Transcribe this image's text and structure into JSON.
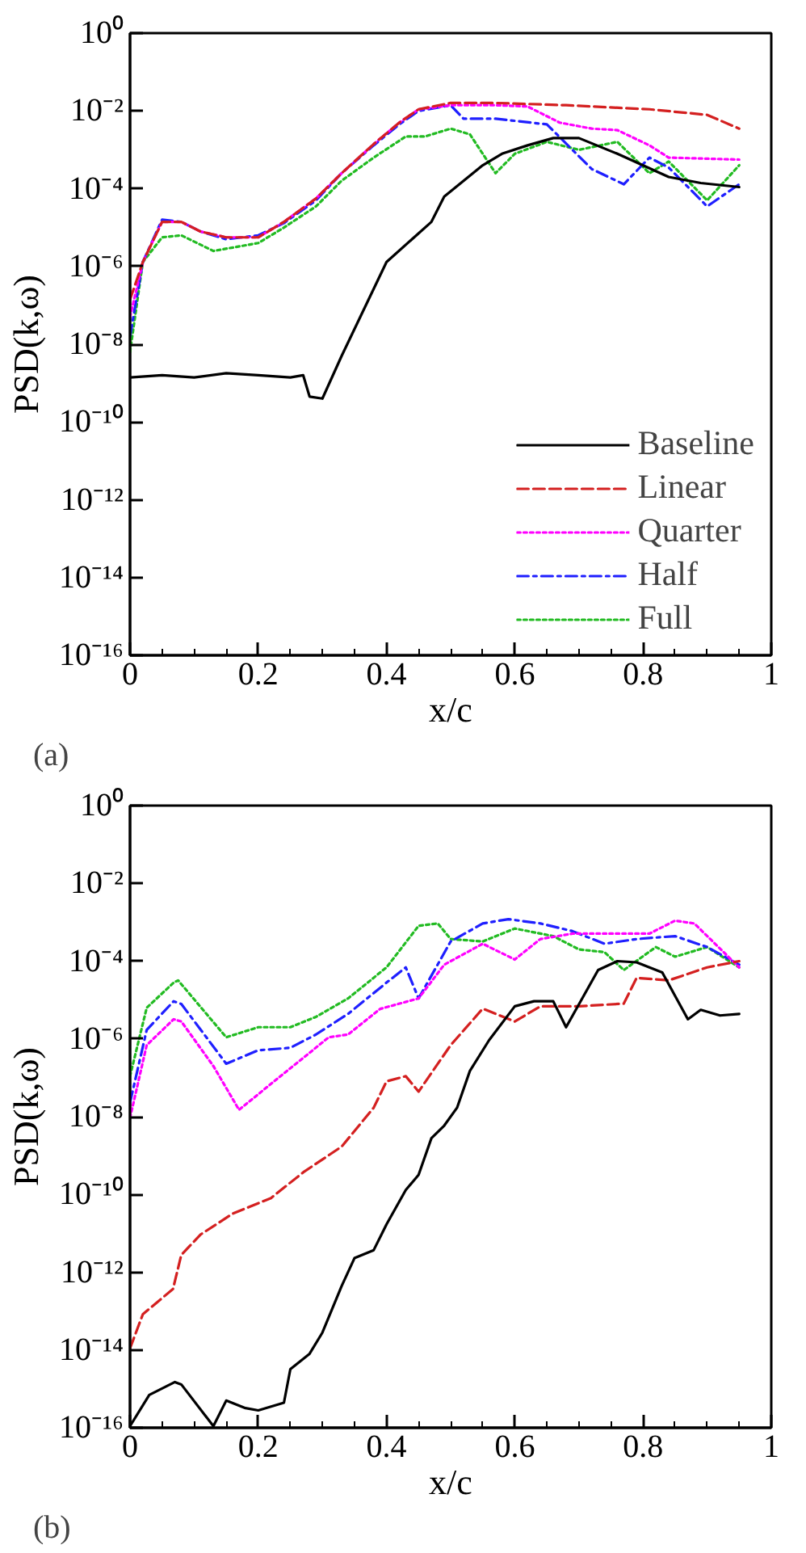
{
  "chart_data": [
    {
      "type": "line",
      "xlabel": "x/c",
      "ylabel": "PSD(k,ω)",
      "annotations": [
        "(a)"
      ],
      "log": "y",
      "grid": false,
      "legend": "bottom right",
      "xlim": [
        0,
        1
      ],
      "ylim": [
        1e-16,
        1
      ],
      "xticks": [
        0,
        0.2,
        0.4,
        0.6,
        0.8,
        1
      ],
      "yticks": [
        {
          "value": 1,
          "label": "10⁰"
        },
        {
          "value": 0.01,
          "label": "10⁻²"
        },
        {
          "value": 0.0001,
          "label": "10⁻⁴"
        },
        {
          "value": 1e-06,
          "label": "10⁻⁶"
        },
        {
          "value": 1e-08,
          "label": "10⁻⁸"
        },
        {
          "value": 1e-10,
          "label": "10⁻¹⁰"
        },
        {
          "value": 1e-12,
          "label": "10⁻¹²"
        },
        {
          "value": 1e-14,
          "label": "10⁻¹⁴"
        },
        {
          "value": 1e-16,
          "label": "10⁻¹⁶"
        }
      ],
      "series": [
        {
          "name": "Baseline",
          "color": "#000000",
          "line_style": "solid",
          "x": [
            0,
            0.05,
            0.1,
            0.15,
            0.2,
            0.25,
            0.27,
            0.28,
            0.3,
            0.33,
            0.4,
            0.47,
            0.49,
            0.55,
            0.58,
            0.62,
            0.66,
            0.7,
            0.76,
            0.84,
            0.89,
            0.95
          ],
          "values": [
            1.4e-09,
            1.6e-09,
            1.4e-09,
            1.8e-09,
            1.6e-09,
            1.4e-09,
            1.6e-09,
            4.5e-10,
            4e-10,
            5e-09,
            1.3e-06,
            1.4e-05,
            6.3e-05,
            0.0004,
            0.00079,
            0.0013,
            0.002,
            0.002,
            0.00079,
            0.0002,
            0.00014,
            0.00011
          ]
        },
        {
          "name": "Linear",
          "color": "#d42020",
          "line_style": "dashed",
          "x": [
            0,
            0.02,
            0.05,
            0.08,
            0.11,
            0.15,
            0.2,
            0.24,
            0.29,
            0.33,
            0.38,
            0.42,
            0.45,
            0.5,
            0.57,
            0.68,
            0.81,
            0.9,
            0.95
          ],
          "values": [
            1.4e-07,
            1.3e-06,
            1.4e-05,
            1.4e-05,
            7.9e-06,
            5.6e-06,
            5.6e-06,
            1.4e-05,
            5.6e-05,
            0.00025,
            0.0014,
            0.005,
            0.011,
            0.016,
            0.016,
            0.014,
            0.011,
            0.0079,
            0.0035
          ]
        },
        {
          "name": "Quarter",
          "color": "#ff00ff",
          "line_style": "dotted",
          "x": [
            0,
            0.02,
            0.05,
            0.08,
            0.11,
            0.15,
            0.2,
            0.24,
            0.29,
            0.33,
            0.38,
            0.42,
            0.45,
            0.5,
            0.57,
            0.62,
            0.67,
            0.72,
            0.76,
            0.81,
            0.84,
            0.95
          ],
          "values": [
            5e-08,
            1.3e-06,
            1.4e-05,
            1.4e-05,
            7.9e-06,
            5.6e-06,
            5.6e-06,
            1.4e-05,
            5.6e-05,
            0.00025,
            0.0014,
            0.005,
            0.011,
            0.014,
            0.014,
            0.013,
            0.005,
            0.0035,
            0.0032,
            0.0013,
            0.00063,
            0.00056
          ]
        },
        {
          "name": "Half",
          "color": "#1f1fff",
          "line_style": "dashdot",
          "x": [
            0,
            0.02,
            0.05,
            0.08,
            0.11,
            0.15,
            0.2,
            0.24,
            0.29,
            0.33,
            0.38,
            0.42,
            0.45,
            0.5,
            0.52,
            0.57,
            0.65,
            0.72,
            0.77,
            0.81,
            0.84,
            0.9,
            0.95
          ],
          "values": [
            1.6e-08,
            1.3e-06,
            1.6e-05,
            1.4e-05,
            7.9e-06,
            5e-06,
            6.3e-06,
            1.3e-05,
            5e-05,
            0.00025,
            0.0013,
            0.0045,
            0.01,
            0.014,
            0.0063,
            0.0063,
            0.0045,
            0.00032,
            0.00013,
            0.00063,
            0.00035,
            3.5e-05,
            0.00013
          ]
        },
        {
          "name": "Full",
          "color": "#22bb22",
          "line_style": "dotted",
          "x": [
            0,
            0.02,
            0.05,
            0.08,
            0.13,
            0.2,
            0.24,
            0.29,
            0.33,
            0.38,
            0.43,
            0.46,
            0.5,
            0.53,
            0.57,
            0.6,
            0.65,
            0.7,
            0.76,
            0.81,
            0.84,
            0.9,
            0.95
          ],
          "values": [
            6.3e-09,
            1.3e-06,
            5.6e-06,
            6.3e-06,
            2.5e-06,
            4e-06,
            1e-05,
            3.5e-05,
            0.00016,
            0.00063,
            0.0022,
            0.0022,
            0.0035,
            0.0025,
            0.00025,
            0.00079,
            0.0016,
            0.001,
            0.0016,
            0.00025,
            0.0005,
            5e-05,
            0.0004
          ]
        }
      ]
    },
    {
      "type": "line",
      "xlabel": "x/c",
      "ylabel": "PSD(k,ω)",
      "annotations": [
        "(b)"
      ],
      "log": "y",
      "grid": false,
      "xlim": [
        0,
        1
      ],
      "ylim": [
        1e-16,
        1
      ],
      "xticks": [
        0,
        0.2,
        0.4,
        0.6,
        0.8,
        1
      ],
      "yticks": [
        {
          "value": 1,
          "label": "10⁰"
        },
        {
          "value": 0.01,
          "label": "10⁻²"
        },
        {
          "value": 0.0001,
          "label": "10⁻⁴"
        },
        {
          "value": 1e-06,
          "label": "10⁻⁶"
        },
        {
          "value": 1e-08,
          "label": "10⁻⁸"
        },
        {
          "value": 1e-10,
          "label": "10⁻¹⁰"
        },
        {
          "value": 1e-12,
          "label": "10⁻¹²"
        },
        {
          "value": 1e-14,
          "label": "10⁻¹⁴"
        },
        {
          "value": 1e-16,
          "label": "10⁻¹⁶"
        }
      ],
      "series": [
        {
          "color": "#000000",
          "line_style": "solid",
          "x": [
            0,
            0.03,
            0.07,
            0.08,
            0.13,
            0.15,
            0.18,
            0.2,
            0.24,
            0.25,
            0.28,
            0.3,
            0.33,
            0.35,
            0.38,
            0.4,
            0.43,
            0.45,
            0.47,
            0.49,
            0.51,
            0.53,
            0.56,
            0.6,
            0.63,
            0.66,
            0.68,
            0.73,
            0.76,
            0.79,
            0.83,
            0.87,
            0.89,
            0.92,
            0.95
          ],
          "values": [
            1.1e-16,
            7e-16,
            1.5e-15,
            1.3e-15,
            1.1e-16,
            5e-16,
            3.2e-16,
            2.8e-16,
            4.4e-16,
            3.2e-15,
            8e-15,
            2.8e-14,
            4.4e-13,
            2.3e-12,
            3.7e-12,
            1.7e-11,
            1.3e-10,
            3.2e-10,
            2.8e-09,
            5.9e-09,
            1.7e-08,
            1.5e-07,
            9.3e-07,
            6.9e-06,
            9.3e-06,
            9.3e-06,
            2e-06,
            5.9e-05,
            0.0001,
            9.3e-05,
            5.1e-05,
            3.2e-06,
            5.6e-06,
            4e-06,
            4.4e-06
          ]
        },
        {
          "color": "#d42020",
          "line_style": "dashed",
          "x": [
            0,
            0.02,
            0.067,
            0.08,
            0.11,
            0.16,
            0.22,
            0.27,
            0.33,
            0.38,
            0.4,
            0.43,
            0.45,
            0.5,
            0.55,
            0.6,
            0.64,
            0.7,
            0.77,
            0.79,
            0.84,
            0.9,
            0.95
          ],
          "values": [
            1.1e-14,
            8.3e-14,
            3.7e-13,
            2.8e-12,
            9.3e-12,
            3.2e-11,
            8.1e-11,
            3.7e-10,
            1.7e-09,
            1.7e-08,
            8.1e-08,
            1.1e-07,
            4.4e-08,
            6.9e-07,
            6e-06,
            2.8e-06,
            6.9e-06,
            6.9e-06,
            8.1e-06,
            3.7e-05,
            3.2e-05,
            6.9e-05,
            0.0001
          ]
        },
        {
          "color": "#ff00ff",
          "line_style": "dotted",
          "x": [
            0,
            0.026,
            0.068,
            0.08,
            0.13,
            0.17,
            0.24,
            0.31,
            0.34,
            0.39,
            0.45,
            0.49,
            0.55,
            0.6,
            0.64,
            0.69,
            0.75,
            0.81,
            0.85,
            0.88,
            0.95
          ],
          "values": [
            9.3e-09,
            6.9e-07,
            3.2e-06,
            2.8e-06,
            2e-07,
            1.5e-08,
            1.3e-07,
            1.1e-06,
            1.3e-06,
            5.9e-06,
            1.1e-05,
            8.1e-05,
            0.00028,
            0.00011,
            0.00037,
            0.00051,
            0.00051,
            0.00051,
            0.0011,
            0.00093,
            6.9e-05
          ]
        },
        {
          "color": "#1f1fff",
          "line_style": "dashdot",
          "x": [
            0,
            0.026,
            0.068,
            0.08,
            0.15,
            0.2,
            0.25,
            0.29,
            0.34,
            0.4,
            0.43,
            0.45,
            0.5,
            0.55,
            0.59,
            0.64,
            0.69,
            0.74,
            0.79,
            0.85,
            0.9,
            0.95
          ],
          "values": [
            2.3e-08,
            1.7e-06,
            9.3e-06,
            7.9e-06,
            2.3e-07,
            5.1e-07,
            5.9e-07,
            1.3e-06,
            4.4e-06,
            2.8e-05,
            6.9e-05,
            1.1e-05,
            0.00032,
            0.00093,
            0.0012,
            0.00093,
            0.00059,
            0.00028,
            0.00037,
            0.00044,
            0.00023,
            8.1e-05
          ]
        },
        {
          "color": "#22bb22",
          "line_style": "dotted",
          "x": [
            0,
            0.026,
            0.068,
            0.075,
            0.15,
            0.2,
            0.25,
            0.29,
            0.34,
            0.4,
            0.45,
            0.48,
            0.5,
            0.55,
            0.6,
            0.66,
            0.7,
            0.74,
            0.77,
            0.82,
            0.85,
            0.9,
            0.95
          ],
          "values": [
            1.1e-07,
            6.3e-06,
            2.8e-05,
            3.2e-05,
            1.1e-06,
            2e-06,
            2e-06,
            3.7e-06,
            1.1e-05,
            6.9e-05,
            0.00081,
            0.00093,
            0.00037,
            0.00032,
            0.00069,
            0.00044,
            0.0002,
            0.00017,
            5.9e-05,
            0.00023,
            0.00013,
            0.00023,
            6.9e-05
          ]
        }
      ]
    }
  ]
}
